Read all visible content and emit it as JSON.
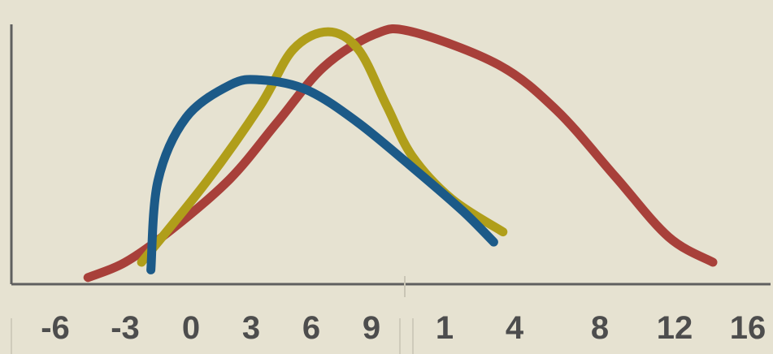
{
  "chart_data": {
    "type": "line",
    "title": "",
    "xlabel": "",
    "ylabel": "",
    "grid": false,
    "legend": "none",
    "x_tick_labels": [
      "-6",
      "-3",
      "0",
      "3",
      "6",
      "9",
      "1",
      "4",
      "8",
      "12",
      "16"
    ],
    "background_color": "#e6e2d1",
    "axis_color": "#5f5f5f",
    "series": [
      {
        "color": "#a8403a",
        "points": [
          [
            -4.6,
            0.02
          ],
          [
            -3.0,
            0.08
          ],
          [
            -1.0,
            0.21
          ],
          [
            1.5,
            0.41
          ],
          [
            3.5,
            0.63
          ],
          [
            5.5,
            0.85
          ],
          [
            7.7,
            0.98
          ],
          [
            9.3,
            0.99
          ],
          [
            13.0,
            0.86
          ],
          [
            15.5,
            0.68
          ],
          [
            18.0,
            0.42
          ],
          [
            20.3,
            0.18
          ],
          [
            22.2,
            0.08
          ]
        ]
      },
      {
        "color": "#b09e1a",
        "points": [
          [
            -2.3,
            0.08
          ],
          [
            0.5,
            0.4
          ],
          [
            2.8,
            0.7
          ],
          [
            4.2,
            0.92
          ],
          [
            5.7,
            0.99
          ],
          [
            7.0,
            0.92
          ],
          [
            8.2,
            0.7
          ],
          [
            9.3,
            0.5
          ],
          [
            11.0,
            0.33
          ],
          [
            13.2,
            0.2
          ]
        ]
      },
      {
        "color": "#1c5a88",
        "points": [
          [
            -1.9,
            0.05
          ],
          [
            -1.6,
            0.4
          ],
          [
            -0.4,
            0.65
          ],
          [
            1.5,
            0.78
          ],
          [
            2.8,
            0.8
          ],
          [
            4.8,
            0.76
          ],
          [
            7.0,
            0.63
          ],
          [
            9.5,
            0.44
          ],
          [
            11.5,
            0.28
          ],
          [
            12.8,
            0.16
          ]
        ]
      }
    ]
  }
}
